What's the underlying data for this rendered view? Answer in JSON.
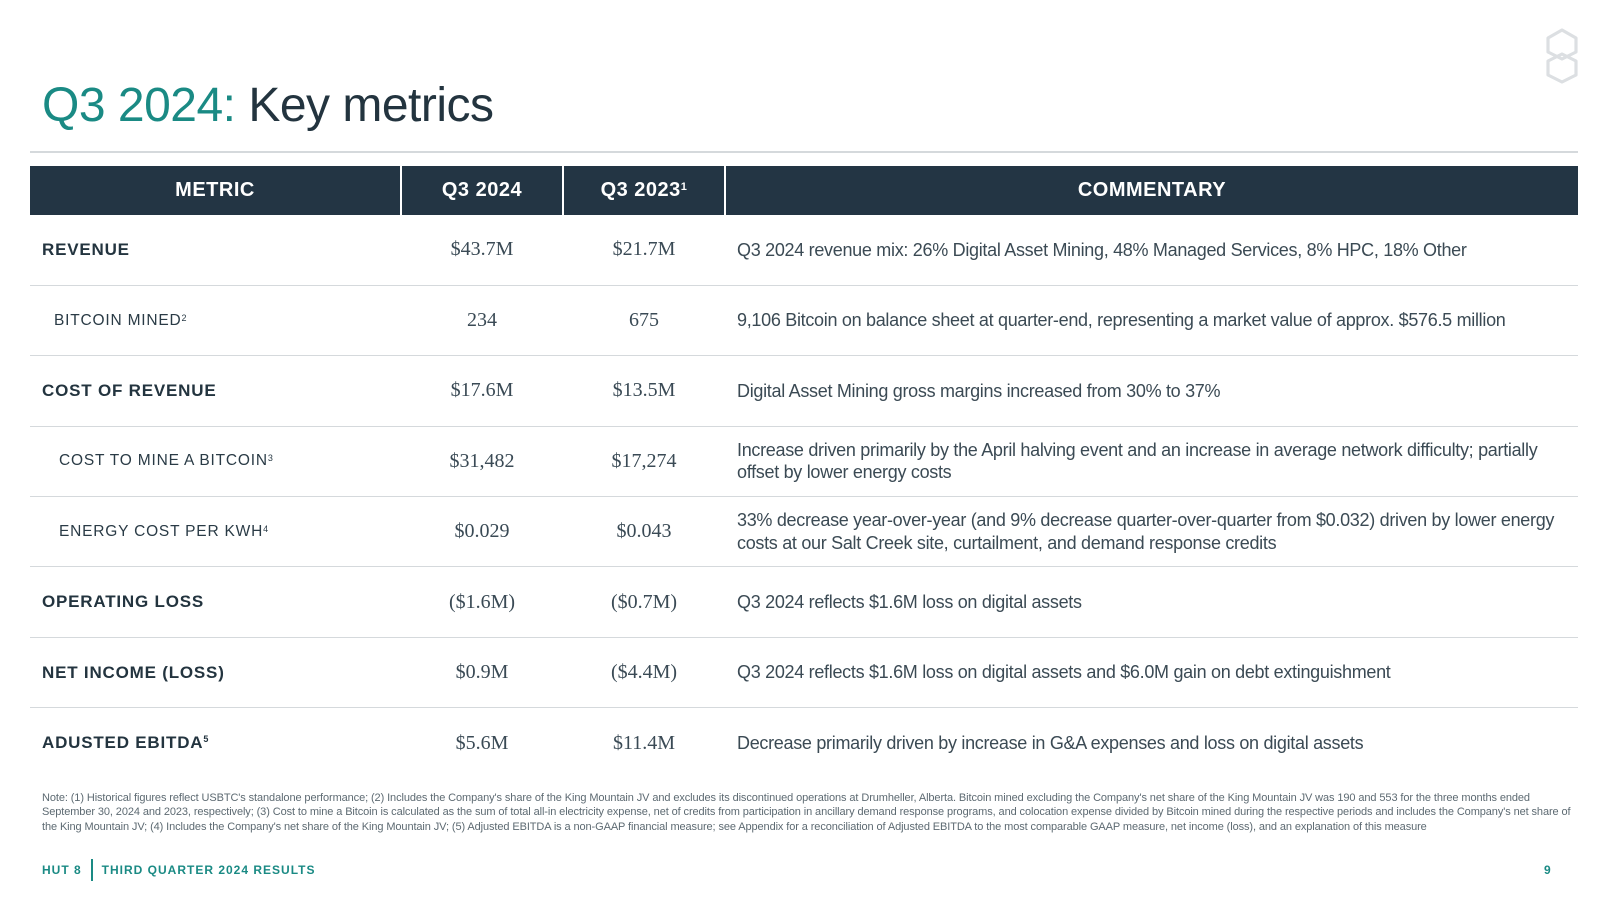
{
  "title": {
    "accent": "Q3 2024:",
    "rest": " Key metrics"
  },
  "table": {
    "headers": {
      "metric": "METRIC",
      "q3_2024": "Q3 2024",
      "q3_2023": "Q3 2023",
      "q3_2023_sup": "1",
      "commentary": "COMMENTARY"
    },
    "rows": [
      {
        "metric": "REVENUE",
        "sup": "",
        "q3_2024": "$43.7M",
        "q3_2023": "$21.7M",
        "commentary": "Q3 2024 revenue mix: 26% Digital Asset Mining, 48% Managed Services, 8% HPC, 18% Other"
      },
      {
        "metric": "BITCOIN MINED",
        "sup": "2",
        "q3_2024": "234",
        "q3_2023": "675",
        "commentary": "9,106 Bitcoin on balance sheet at quarter-end, representing a market value of approx. $576.5 million"
      },
      {
        "metric": "COST OF REVENUE",
        "sup": "",
        "q3_2024": "$17.6M",
        "q3_2023": "$13.5M",
        "commentary": "Digital Asset Mining gross margins increased from 30% to 37%"
      },
      {
        "metric": "COST TO MINE A BITCOIN",
        "sup": "3",
        "q3_2024": "$31,482",
        "q3_2023": "$17,274",
        "commentary": "Increase driven primarily by the April halving event and an increase in average network difficulty; partially offset by lower energy costs"
      },
      {
        "metric": "ENERGY COST PER KWH",
        "sup": "4",
        "q3_2024": "$0.029",
        "q3_2023": "$0.043",
        "commentary": "33% decrease year-over-year (and 9% decrease quarter-over-quarter from $0.032) driven by lower energy costs at our Salt Creek site, curtailment, and demand response credits"
      },
      {
        "metric": "OPERATING LOSS",
        "sup": "",
        "q3_2024": "($1.6M)",
        "q3_2023": "($0.7M)",
        "commentary": "Q3 2024 reflects $1.6M loss on digital assets"
      },
      {
        "metric": "NET INCOME (LOSS)",
        "sup": "",
        "q3_2024": "$0.9M",
        "q3_2023": "($4.4M)",
        "commentary": "Q3 2024 reflects $1.6M loss on digital assets and $6.0M gain on debt extinguishment"
      },
      {
        "metric": "ADUSTED EBITDA",
        "sup": "5",
        "q3_2024": "$5.6M",
        "q3_2023": "$11.4M",
        "commentary": "Decrease primarily driven by increase in G&A expenses and loss on digital assets"
      }
    ]
  },
  "note": "Note: (1) Historical figures reflect USBTC's standalone performance; (2) Includes the Company's share of the King Mountain JV and excludes its discontinued operations at Drumheller, Alberta. Bitcoin mined excluding the Company's net share of the King Mountain JV was 190 and 553 for the three months ended September 30, 2024 and 2023, respectively; (3) Cost to mine a Bitcoin is calculated as the sum of total all-in electricity expense, net of credits from participation in ancillary demand response programs, and colocation expense divided by Bitcoin mined during the respective periods and includes the Company's net share of the King Mountain JV; (4) Includes the Company's net share of the King Mountain JV; (5) Adjusted EBITDA is a non-GAAP financial measure; see Appendix for a reconciliation of Adjusted EBITDA to the most comparable GAAP measure, net income (loss), and an explanation of this measure",
  "footer": {
    "company": "HUT 8",
    "section": "THIRD QUARTER 2024 RESULTS",
    "page": "9"
  },
  "colors": {
    "accent": "#1a8a84",
    "header_bg": "#233544",
    "text": "#23343f"
  },
  "icons": {
    "logo": "hut8-logo-icon"
  }
}
